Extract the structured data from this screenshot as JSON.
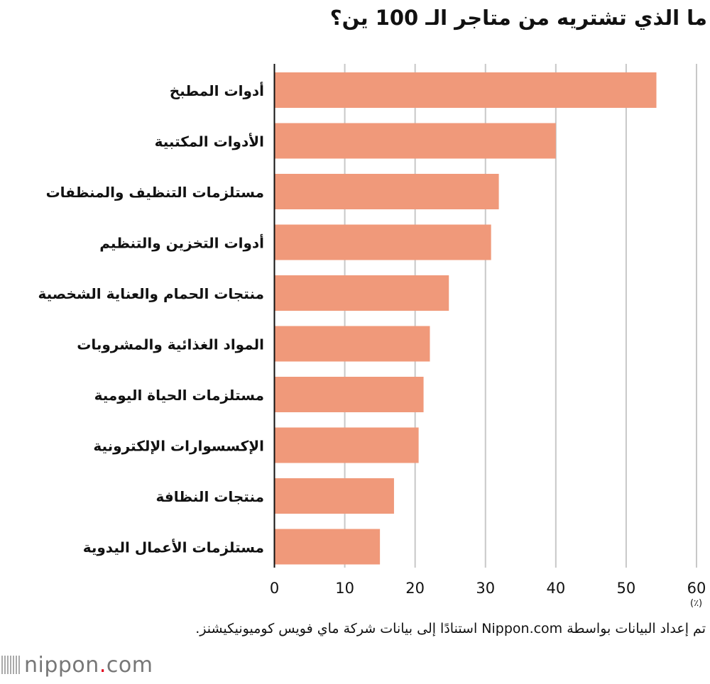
{
  "title": "ما الذي تشتريه من متاجر الـ 100 ين؟",
  "chart_data": {
    "type": "bar",
    "orientation": "horizontal",
    "title": "ما الذي تشتريه من متاجر الـ 100 ين؟",
    "categories": [
      "أدوات المطبخ",
      "الأدوات المكتبية",
      "مستلزمات التنظيف والمنظفات",
      "أدوات التخزين والتنظيم",
      "منتجات الحمام والعناية الشخصية",
      "المواد الغذائية والمشروبات",
      "مستلزمات الحياة اليومية",
      "الإكسسوارات الإلكترونية",
      "منتجات النظافة",
      "مستلزمات الأعمال اليدوية"
    ],
    "values": [
      54.3,
      40.0,
      31.9,
      30.8,
      24.8,
      22.1,
      21.2,
      20.5,
      17.0,
      15.0
    ],
    "xlim": [
      0,
      60
    ],
    "xticks": [
      "0",
      "10",
      "20",
      "30",
      "40",
      "50",
      "60"
    ],
    "xlabel": "(٪)",
    "grid": true,
    "bar_color": "#f0997a"
  },
  "source_note": "تم إعداد البيانات بواسطة Nippon.com استنادًا إلى بيانات شركة ماي فويس كوميونيكيشنز.",
  "logo": {
    "main": "nippon",
    "dot": ".",
    "suffix": "com"
  }
}
